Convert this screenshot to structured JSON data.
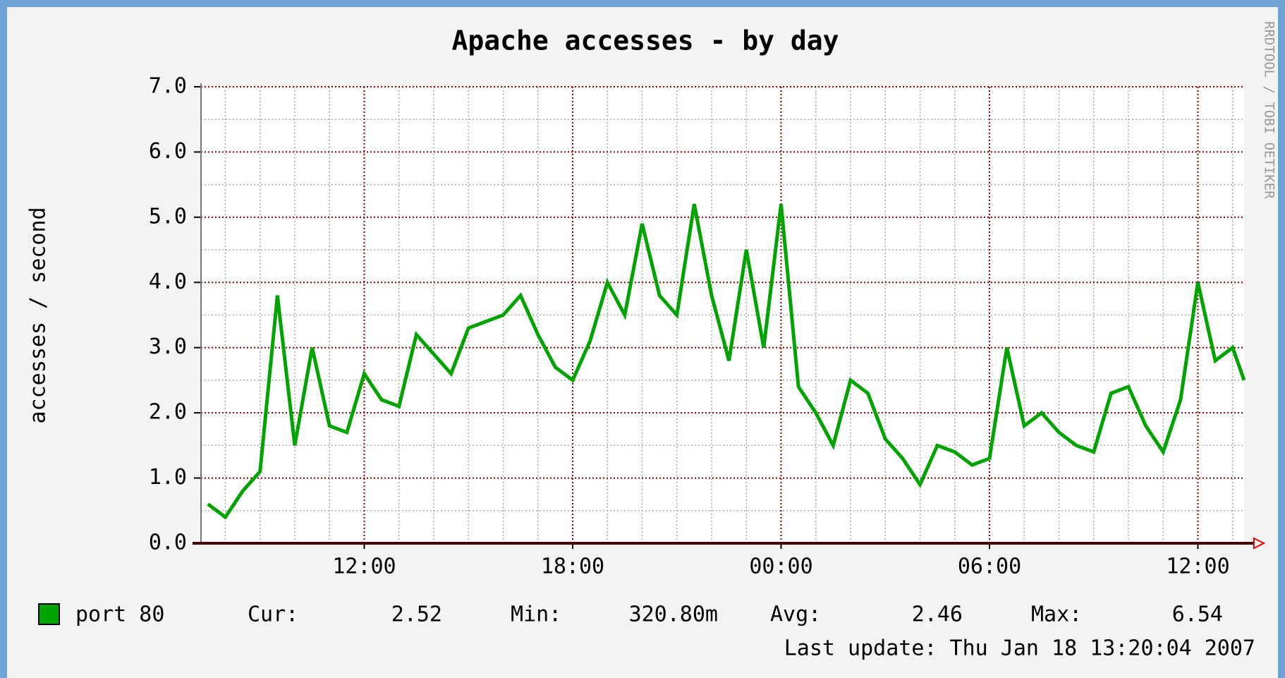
{
  "chart_data": {
    "type": "line",
    "title": "Apache accesses - by day",
    "y_label": "accesses / second",
    "side_text": "RRDTOOL / TOBI OETIKER",
    "x": [
      7.5,
      8.0,
      8.5,
      9.0,
      9.5,
      10.0,
      10.5,
      11.0,
      11.5,
      12.0,
      12.5,
      13.0,
      13.5,
      14.0,
      14.5,
      15.0,
      15.5,
      16.0,
      16.5,
      17.0,
      17.5,
      18.0,
      18.5,
      19.0,
      19.5,
      20.0,
      20.5,
      21.0,
      21.5,
      22.0,
      22.5,
      23.0,
      23.5,
      24.0,
      24.5,
      25.0,
      25.5,
      26.0,
      26.5,
      27.0,
      27.5,
      28.0,
      28.5,
      29.0,
      29.5,
      30.0,
      30.5,
      31.0,
      31.5,
      32.0,
      32.5,
      33.0,
      33.5,
      34.0,
      34.5,
      35.0,
      35.5,
      36.0,
      36.5,
      37.0,
      37.33
    ],
    "series": [
      {
        "name": "port 80",
        "color": "#00a400",
        "values": [
          0.6,
          0.4,
          0.8,
          1.1,
          3.8,
          1.5,
          3.0,
          1.8,
          1.7,
          2.6,
          2.2,
          2.1,
          3.2,
          2.9,
          2.6,
          3.3,
          3.4,
          3.5,
          3.8,
          3.2,
          2.7,
          2.5,
          3.1,
          4.0,
          3.5,
          4.9,
          3.8,
          3.5,
          5.2,
          3.8,
          2.8,
          4.5,
          3.0,
          5.2,
          2.4,
          2.0,
          1.5,
          2.5,
          2.3,
          1.6,
          1.3,
          0.9,
          1.5,
          1.4,
          1.2,
          1.3,
          3.0,
          1.8,
          2.0,
          1.7,
          1.5,
          1.4,
          2.3,
          2.4,
          1.8,
          1.4,
          2.2,
          4.0,
          2.8,
          3.0,
          2.5
        ]
      }
    ],
    "xlim": [
      7.3,
      37.33
    ],
    "xticks": [
      {
        "value": 12,
        "label": "12:00"
      },
      {
        "value": 18,
        "label": "18:00"
      },
      {
        "value": 24,
        "label": "00:00"
      },
      {
        "value": 30,
        "label": "06:00"
      },
      {
        "value": 36,
        "label": "12:00"
      }
    ],
    "ylim": [
      0,
      7
    ],
    "yticks": [
      {
        "value": 0,
        "label": "0.0"
      },
      {
        "value": 1,
        "label": "1.0"
      },
      {
        "value": 2,
        "label": "2.0"
      },
      {
        "value": 3,
        "label": "3.0"
      },
      {
        "value": 4,
        "label": "4.0"
      },
      {
        "value": 5,
        "label": "5.0"
      },
      {
        "value": 6,
        "label": "6.0"
      },
      {
        "value": 7,
        "label": "7.0"
      }
    ],
    "grid": true,
    "stats": [
      {
        "label": "Cur:",
        "value": "2.52"
      },
      {
        "label": "Min:",
        "value": "320.80m"
      },
      {
        "label": "Avg:",
        "value": "2.46"
      },
      {
        "label": "Max:",
        "value": "6.54"
      }
    ],
    "last_update": "Last update: Thu Jan 18 13:20:04 2007"
  }
}
